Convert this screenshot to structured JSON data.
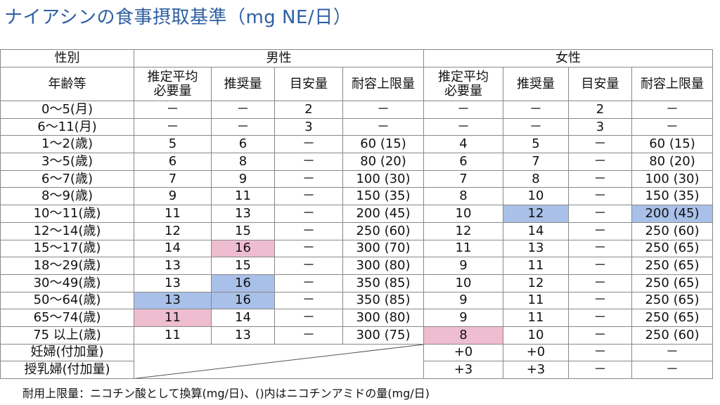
{
  "title": "ナイアシンの食事摂取基準（mg NE/日）",
  "header": {
    "sex_label": "性別",
    "male": "男性",
    "female": "女性",
    "age_label": "年齢等",
    "columns": [
      "推定平均\n必要量",
      "推奨量",
      "目安量",
      "耐容上限量"
    ]
  },
  "colors": {
    "blue": "#a9c1e8",
    "pink": "#efbdd0",
    "title": "#2e5fa3"
  },
  "rows": [
    {
      "age": "0～5(月)",
      "m": [
        "－",
        "－",
        "2",
        "－"
      ],
      "f": [
        "－",
        "－",
        "2",
        "－"
      ]
    },
    {
      "age": "6～11(月)",
      "m": [
        "－",
        "－",
        "3",
        "－"
      ],
      "f": [
        "－",
        "－",
        "3",
        "－"
      ]
    },
    {
      "age": "1～2(歳)",
      "m": [
        "5",
        "6",
        "－",
        "60 (15)"
      ],
      "f": [
        "4",
        "5",
        "－",
        "60 (15)"
      ]
    },
    {
      "age": "3～5(歳)",
      "m": [
        "6",
        "8",
        "－",
        "80 (20)"
      ],
      "f": [
        "6",
        "7",
        "－",
        "80 (20)"
      ]
    },
    {
      "age": "6～7(歳)",
      "m": [
        "7",
        "9",
        "－",
        "100 (30)"
      ],
      "f": [
        "7",
        "8",
        "－",
        "100 (30)"
      ]
    },
    {
      "age": "8～9(歳)",
      "m": [
        "9",
        "11",
        "－",
        "150 (35)"
      ],
      "f": [
        "8",
        "10",
        "－",
        "150 (35)"
      ]
    },
    {
      "age": "10～11(歳)",
      "m": [
        "11",
        "13",
        "－",
        "200 (45)"
      ],
      "f": [
        "10",
        "12",
        "－",
        "200 (45)"
      ],
      "hf": [
        null,
        "blue",
        null,
        "blue"
      ]
    },
    {
      "age": "12～14(歳)",
      "m": [
        "12",
        "15",
        "－",
        "250 (60)"
      ],
      "f": [
        "12",
        "14",
        "－",
        "250 (60)"
      ]
    },
    {
      "age": "15～17(歳)",
      "m": [
        "14",
        "16",
        "－",
        "300 (70)"
      ],
      "f": [
        "11",
        "13",
        "－",
        "250 (65)"
      ],
      "hm": [
        null,
        "pink",
        null,
        null
      ]
    },
    {
      "age": "18～29(歳)",
      "m": [
        "13",
        "15",
        "－",
        "300 (80)"
      ],
      "f": [
        "9",
        "11",
        "－",
        "250 (65)"
      ]
    },
    {
      "age": "30～49(歳)",
      "m": [
        "13",
        "16",
        "－",
        "350 (85)"
      ],
      "f": [
        "10",
        "12",
        "－",
        "250 (65)"
      ],
      "hm": [
        null,
        "blue",
        null,
        null
      ]
    },
    {
      "age": "50～64(歳)",
      "m": [
        "13",
        "16",
        "－",
        "350 (85)"
      ],
      "f": [
        "9",
        "11",
        "－",
        "250 (65)"
      ],
      "hm": [
        "blue",
        "blue",
        null,
        null
      ]
    },
    {
      "age": "65～74(歳)",
      "m": [
        "11",
        "14",
        "－",
        "300 (80)"
      ],
      "f": [
        "9",
        "11",
        "－",
        "250 (65)"
      ],
      "hm": [
        "pink",
        null,
        null,
        null
      ]
    },
    {
      "age": "75 以上(歳)",
      "m": [
        "11",
        "13",
        "－",
        "300 (75)"
      ],
      "f": [
        "8",
        "10",
        "－",
        "250 (60)"
      ],
      "hf": [
        "pink",
        null,
        null,
        null
      ]
    },
    {
      "age": "妊婦(付加量)",
      "f": [
        "+0",
        "+0",
        "－",
        "－"
      ]
    },
    {
      "age": "授乳婦(付加量)",
      "f": [
        "+3",
        "+3",
        "－",
        "－"
      ]
    }
  ],
  "note": "耐用上限量：ニコチン酸として換算(mg/日)、()内はニコチンアミドの量(mg/日)"
}
